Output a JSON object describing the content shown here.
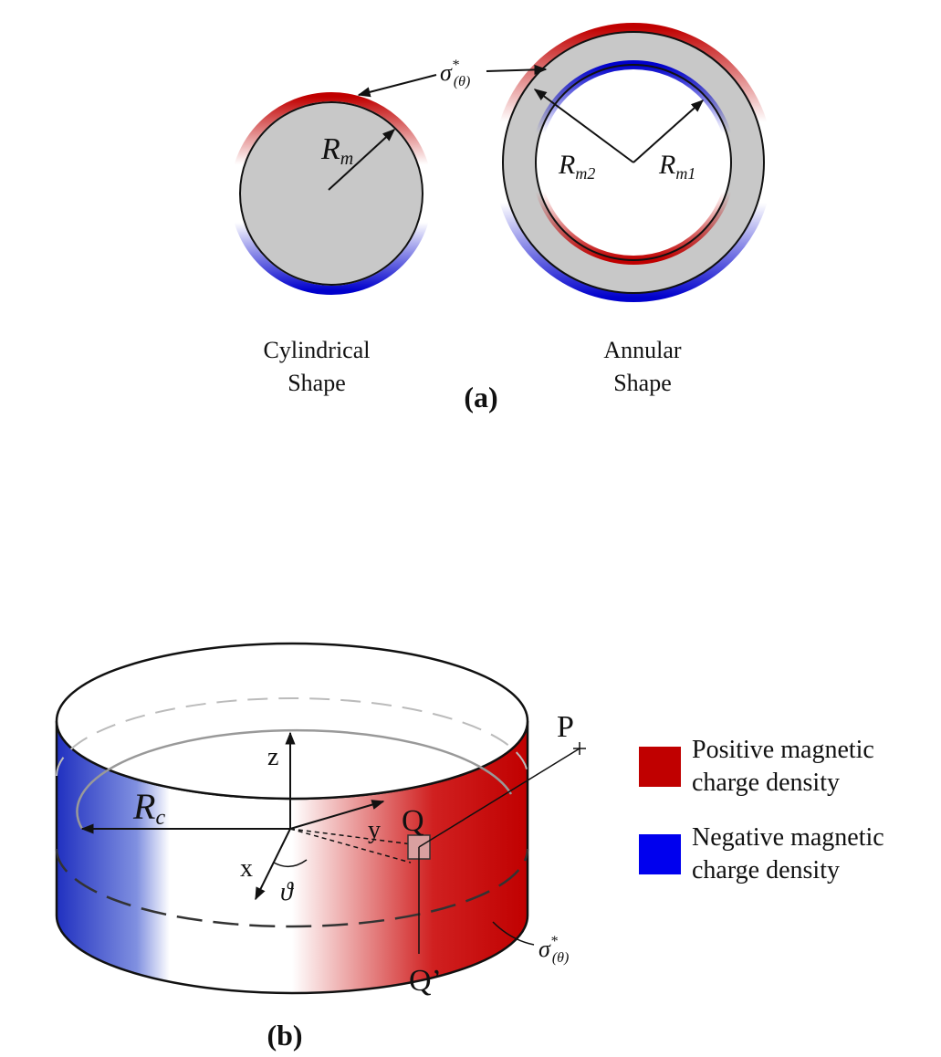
{
  "panel_a": {
    "sigma_label": {
      "base": "σ",
      "sup": "*",
      "sub": "(θ)"
    },
    "cylinder": {
      "radius_label": {
        "base": "R",
        "sub": "m"
      },
      "caption": [
        "Cylindrical",
        "Shape"
      ]
    },
    "annulus": {
      "outer_radius_label": {
        "base": "R",
        "sub": "m2"
      },
      "inner_radius_label": {
        "base": "R",
        "sub": "m1"
      },
      "caption": [
        "Annular",
        "Shape"
      ]
    },
    "label": "(a)"
  },
  "panel_b": {
    "radius_label": {
      "base": "R",
      "sub": "c"
    },
    "axes": {
      "z": "z",
      "y": "y",
      "x": "x"
    },
    "angle": "ϑ",
    "points": {
      "p": "P",
      "q": "Q",
      "q_prime": "Q’"
    },
    "sigma_label": {
      "base": "σ",
      "sup": "*",
      "sub": "(θ)"
    },
    "label": "(b)"
  },
  "legend": [
    {
      "label": [
        "Positive magnetic",
        "charge density"
      ],
      "color": "#c00000"
    },
    {
      "label": [
        "Negative magnetic",
        "charge density"
      ],
      "color": "#0000ee"
    }
  ]
}
